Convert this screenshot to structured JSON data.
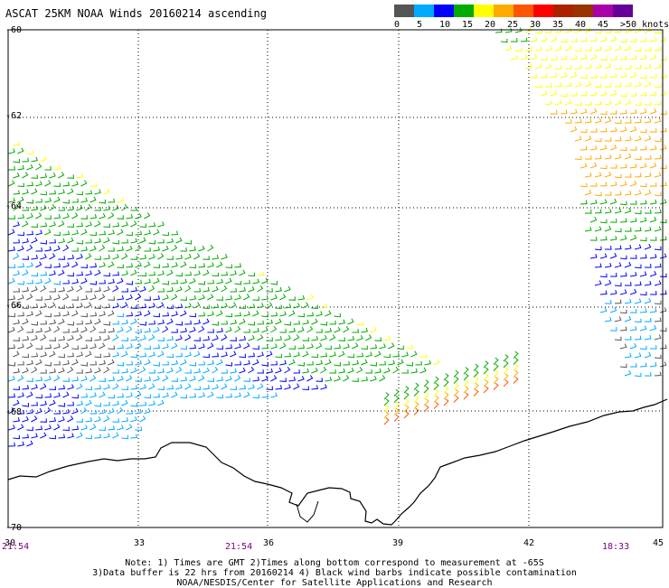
{
  "title": "ASCAT 25KM NOAA Winds 20160214 ascending",
  "legend": {
    "colors": [
      "#555555",
      "#00aaff",
      "#0000ff",
      "#00aa00",
      "#ffff00",
      "#ffaa00",
      "#ff5500",
      "#ff0000",
      "#aa2200",
      "#993300",
      "#aa00aa",
      "#660099"
    ],
    "labels": [
      "0",
      "5",
      "10",
      "15",
      "20",
      "25",
      "30",
      "35",
      "40",
      "45",
      ">50 knots"
    ]
  },
  "latitudes": [
    "-60",
    "-62",
    "-64",
    "-66",
    "-68",
    "-70"
  ],
  "longitudes": [
    "30",
    "33",
    "36",
    "39",
    "42",
    "45"
  ],
  "times": [
    "21:54",
    "21:54",
    "18:33"
  ],
  "notes": [
    "Note: 1) Times are GMT 2)Times along bottom correspond to measurement at -65S",
    "3)Data buffer is 22 hrs from 20160214 4) Black wind barbs indicate possible contamination",
    "NOAA/NESDIS/Center for Satellite Applications and Research"
  ],
  "swaths": {
    "west": {
      "color_bands": [
        "#ffff00",
        "#00aa00",
        "#0000ff",
        "#00aaff",
        "#555555"
      ]
    },
    "east": {
      "color_bands": [
        "#ffff00",
        "#ffaa00",
        "#00aa00",
        "#0000ff",
        "#00aaff"
      ]
    },
    "south": {
      "color_bands": [
        "#ffff00",
        "#ffaa00",
        "#ff5500",
        "#00aa00"
      ]
    }
  }
}
